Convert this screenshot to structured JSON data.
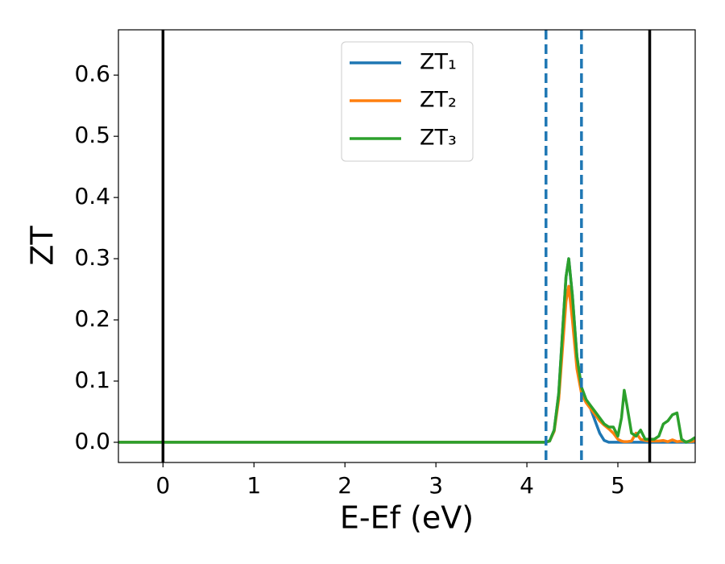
{
  "chart_data": {
    "type": "line",
    "xlabel": "E-Ef (eV)",
    "ylabel": "ZT",
    "x": [
      -0.49,
      4.2,
      4.25,
      4.3,
      4.35,
      4.4,
      4.43,
      4.46,
      4.5,
      4.55,
      4.6,
      4.65,
      4.7,
      4.75,
      4.8,
      4.85,
      4.9,
      4.95,
      5.0,
      5.04,
      5.07,
      5.1,
      5.15,
      5.2,
      5.25,
      5.3,
      5.35,
      5.4,
      5.45,
      5.5,
      5.55,
      5.6,
      5.65,
      5.7,
      5.75,
      5.8,
      5.85
    ],
    "series": [
      {
        "name": "ZT₁",
        "color": "#1f77b4",
        "values": [
          0,
          0,
          0.002,
          0.02,
          0.08,
          0.2,
          0.27,
          0.3,
          0.24,
          0.14,
          0.09,
          0.07,
          0.055,
          0.035,
          0.015,
          0.003,
          0,
          0,
          0,
          0,
          0,
          0,
          0,
          0,
          0,
          0,
          0,
          0,
          0,
          0,
          0,
          0,
          0,
          0,
          0,
          0,
          0
        ]
      },
      {
        "name": "ZT₂",
        "color": "#ff7f0e",
        "values": [
          0,
          0,
          0.002,
          0.018,
          0.07,
          0.17,
          0.23,
          0.255,
          0.2,
          0.12,
          0.08,
          0.065,
          0.055,
          0.045,
          0.035,
          0.028,
          0.022,
          0.015,
          0.005,
          0.002,
          0.001,
          0.001,
          0.002,
          0.015,
          0.005,
          0.003,
          0.002,
          0.002,
          0.002,
          0.003,
          0.001,
          0.004,
          0.001,
          0.002,
          0.001,
          0.001,
          0.002
        ]
      },
      {
        "name": "ZT₃",
        "color": "#2ca02c",
        "values": [
          0,
          0,
          0.002,
          0.02,
          0.08,
          0.2,
          0.27,
          0.3,
          0.24,
          0.14,
          0.09,
          0.07,
          0.06,
          0.05,
          0.04,
          0.03,
          0.025,
          0.025,
          0.01,
          0.04,
          0.085,
          0.06,
          0.015,
          0.01,
          0.02,
          0.005,
          0.005,
          0.005,
          0.01,
          0.03,
          0.035,
          0.045,
          0.048,
          0.005,
          0,
          0.003,
          0.008
        ]
      }
    ],
    "vlines": [
      {
        "x": 0,
        "color": "#000000",
        "style": "solid"
      },
      {
        "x": 5.35,
        "color": "#000000",
        "style": "solid"
      },
      {
        "x": 4.21,
        "color": "#1f77b4",
        "style": "dashed"
      },
      {
        "x": 4.6,
        "color": "#1f77b4",
        "style": "dashed"
      }
    ],
    "xlim": [
      -0.49,
      5.85
    ],
    "xticks": [
      0,
      1,
      2,
      3,
      4,
      5
    ],
    "ylim": [
      -0.033,
      0.674
    ],
    "yticks": [
      {
        "value": 0,
        "label": "0.0"
      },
      0.1,
      0.2,
      0.3,
      0.4,
      0.5,
      0.6
    ],
    "legend": "upper center",
    "grid": false
  }
}
